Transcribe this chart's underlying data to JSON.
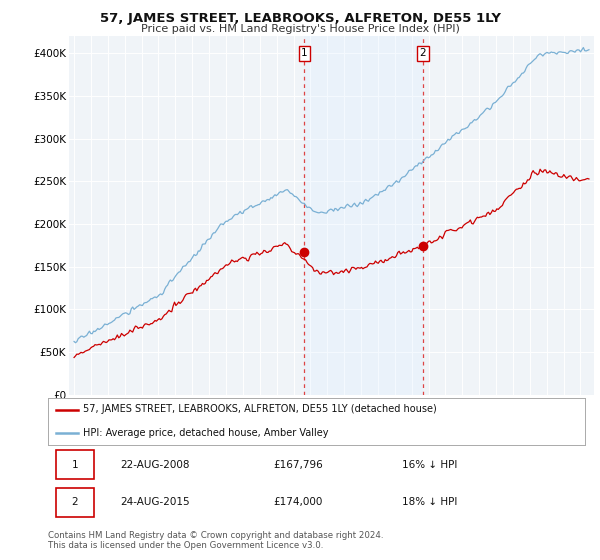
{
  "title": "57, JAMES STREET, LEABROOKS, ALFRETON, DE55 1LY",
  "subtitle": "Price paid vs. HM Land Registry's House Price Index (HPI)",
  "ylabel_ticks": [
    "£0",
    "£50K",
    "£100K",
    "£150K",
    "£200K",
    "£250K",
    "£300K",
    "£350K",
    "£400K"
  ],
  "ytick_values": [
    0,
    50000,
    100000,
    150000,
    200000,
    250000,
    300000,
    350000,
    400000
  ],
  "ylim": [
    0,
    420000
  ],
  "xlim_left": 1994.7,
  "xlim_right": 2025.8,
  "sale1_t": 2008.65,
  "sale1_p": 167796,
  "sale2_t": 2015.65,
  "sale2_p": 174000,
  "marker_color": "#cc0000",
  "vline_color": "#dd4444",
  "shade_color": "#ddeeff",
  "legend_line1_label": "57, JAMES STREET, LEABROOKS, ALFRETON, DE55 1LY (detached house)",
  "legend_line1_color": "#cc0000",
  "legend_line2_label": "HPI: Average price, detached house, Amber Valley",
  "legend_line2_color": "#7ab0d4",
  "table_rows": [
    [
      "1",
      "22-AUG-2008",
      "£167,796",
      "16% ↓ HPI"
    ],
    [
      "2",
      "24-AUG-2015",
      "£174,000",
      "18% ↓ HPI"
    ]
  ],
  "footer": "Contains HM Land Registry data © Crown copyright and database right 2024.\nThis data is licensed under the Open Government Licence v3.0.",
  "background_color": "#ffffff",
  "plot_bg_color": "#f0f4f8"
}
